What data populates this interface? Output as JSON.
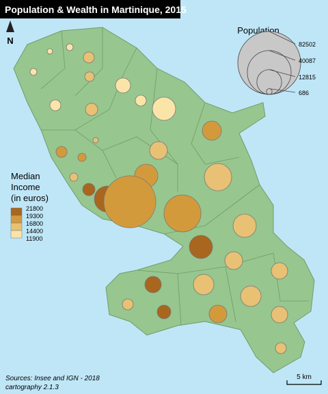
{
  "title": "Population & Wealth in Martinique, 2015",
  "north": "N",
  "population_legend": {
    "title": "Population",
    "values": [
      82502,
      40087,
      12815,
      686
    ]
  },
  "income_legend": {
    "title": [
      "Median",
      "Income",
      "(in euros)"
    ],
    "values": [
      21800,
      19300,
      16800,
      14400,
      11900
    ],
    "colors": [
      "#a8661e",
      "#d39a3c",
      "#e8c174",
      "#fbe4a8"
    ]
  },
  "sources": "Sources: Insee and IGN - 2018",
  "credit": "cartography 2.1.3",
  "scale": "5 km"
}
